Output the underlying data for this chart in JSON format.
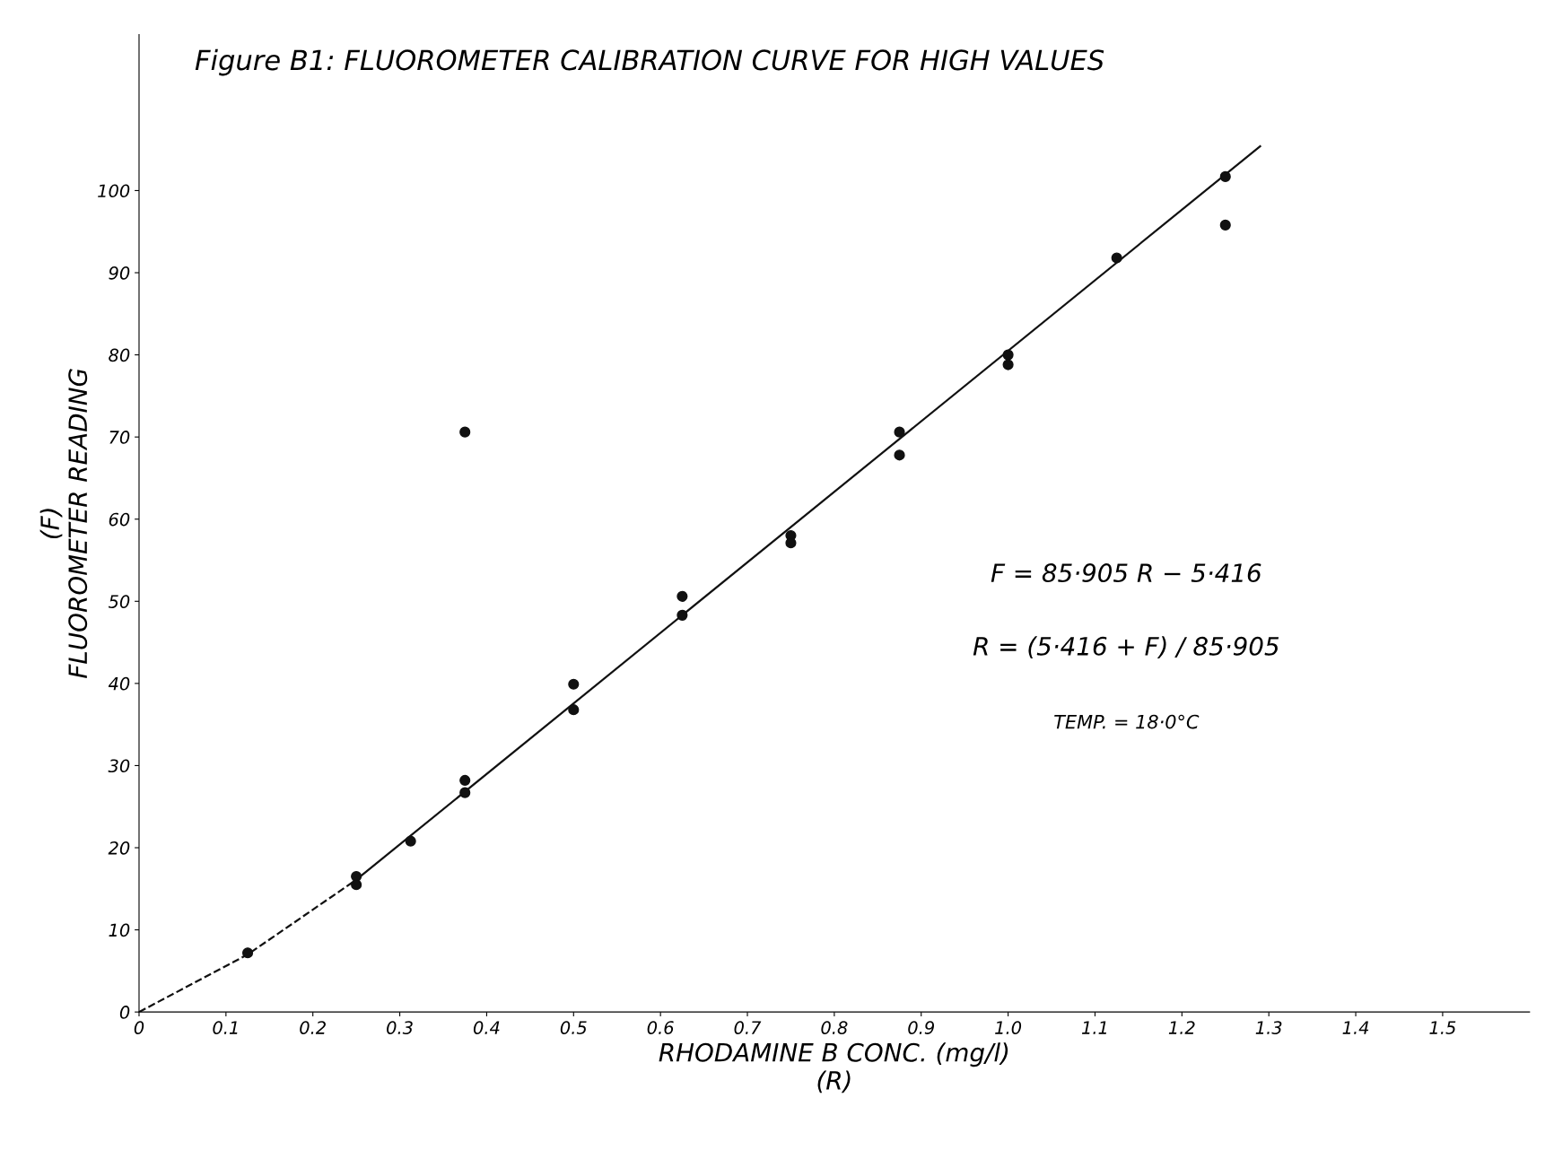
{
  "chart_data": {
    "type": "scatter",
    "title": "Figure B1: FLUOROMETER CALIBRATION CURVE FOR HIGH VALUES",
    "xlabel": "RHODAMINE B CONC. (mg/l)\n(R)",
    "ylabel": "(F)\nFLUOROMETER READING",
    "xlim": [
      0,
      1.6
    ],
    "ylim": [
      0,
      119
    ],
    "xticks": [
      0,
      0.1,
      0.2,
      0.3,
      0.4,
      0.5,
      0.6,
      0.7,
      0.8,
      0.9,
      {
        "value": 1.0,
        "label": "1.0"
      },
      1.1,
      1.2,
      1.3,
      1.4,
      1.5
    ],
    "yticks": [
      0,
      10,
      20,
      30,
      40,
      50,
      60,
      70,
      80,
      90,
      100
    ],
    "grid": false,
    "legend": false,
    "annotations": [
      "F = 85·905 R − 5·416",
      "R = (5·416 + F) / 85·905",
      "TEMP. = 18·0°C"
    ],
    "series": [
      {
        "color": "#111111",
        "marker": "circle",
        "x": [
          0.125,
          0.25,
          0.25,
          0.3125,
          0.375,
          0.375,
          0.375,
          0.5,
          0.5,
          0.625,
          0.625,
          0.75,
          0.75,
          0.875,
          0.875,
          1.0,
          1.0,
          1.125,
          1.25,
          1.25
        ],
        "values": [
          7.2,
          16.5,
          15.5,
          20.8,
          28.2,
          26.7,
          70.6,
          39.9,
          36.8,
          50.6,
          48.3,
          58.0,
          57.1,
          70.6,
          67.8,
          80.0,
          78.8,
          91.8,
          101.7,
          95.8
        ]
      },
      {
        "type": "line",
        "color": "#111111",
        "line_style": "solid",
        "x": [
          0.25,
          1.29
        ],
        "values": [
          16.1,
          105.4
        ]
      },
      {
        "type": "line",
        "color": "#111111",
        "line_style": "dashed",
        "x": [
          0,
          0.125,
          0.25
        ],
        "values": [
          0,
          7.0,
          16.1
        ]
      }
    ]
  }
}
